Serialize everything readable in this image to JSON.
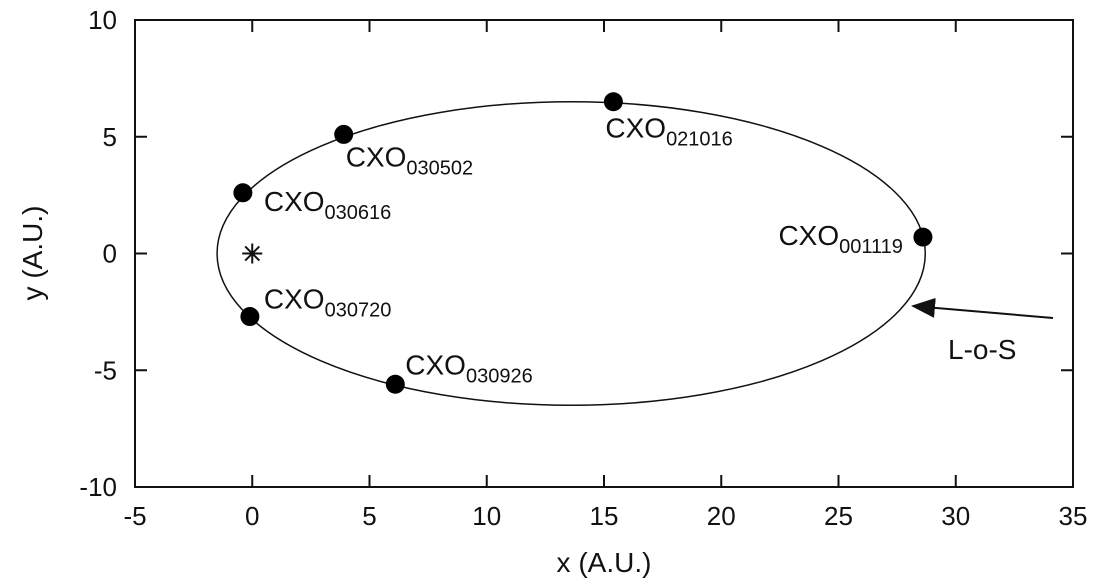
{
  "chart_data": {
    "type": "scatter",
    "x_label": "x (A.U.)",
    "y_label": "y (A.U.)",
    "xlim": [
      -5,
      35
    ],
    "ylim": [
      -10,
      10
    ],
    "xticks": [
      -5,
      0,
      5,
      10,
      15,
      20,
      25,
      30,
      35
    ],
    "yticks": [
      -10,
      -5,
      0,
      5,
      10
    ],
    "color": "#000000",
    "x": [
      15.4,
      3.9,
      -0.4,
      28.6,
      -0.1,
      6.1
    ],
    "values": [
      6.5,
      5.1,
      2.6,
      0.7,
      -2.7,
      -5.6
    ],
    "point_labels": [
      {
        "text": "CXO",
        "sub": "021016"
      },
      {
        "text": "CXO",
        "sub": "030502"
      },
      {
        "text": "CXO",
        "sub": "030616"
      },
      {
        "text": "CXO",
        "sub": "001119"
      },
      {
        "text": "CXO",
        "sub": "030720"
      },
      {
        "text": "CXO",
        "sub": "030926"
      }
    ],
    "sun": {
      "x": 0,
      "y": 0
    },
    "orbit": {
      "cx": 13.6,
      "cy": 0,
      "rx": 15.1,
      "ry": 6.5
    },
    "annotation": "L-o-S"
  }
}
